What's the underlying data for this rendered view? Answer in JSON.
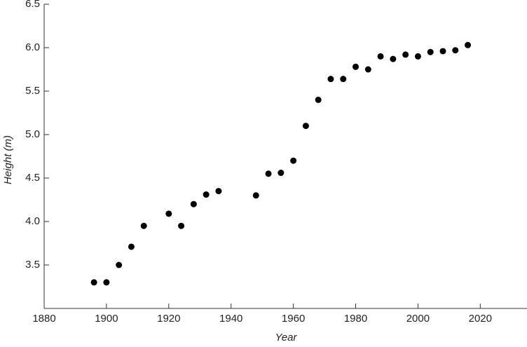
{
  "chart_data": {
    "type": "scatter",
    "x_label": "Year",
    "y_label": "Height (m)",
    "color": "#000000",
    "x": [
      1896,
      1900,
      1904,
      1908,
      1912,
      1920,
      1924,
      1928,
      1932,
      1936,
      1948,
      1952,
      1956,
      1960,
      1964,
      1968,
      1972,
      1976,
      1980,
      1984,
      1988,
      1992,
      1996,
      2000,
      2004,
      2008,
      2012,
      2016
    ],
    "values": [
      3.3,
      3.3,
      3.5,
      3.71,
      3.95,
      4.09,
      3.95,
      4.2,
      4.31,
      4.35,
      4.3,
      4.55,
      4.56,
      4.7,
      5.1,
      5.4,
      5.64,
      5.64,
      5.78,
      5.75,
      5.9,
      5.87,
      5.92,
      5.9,
      5.95,
      5.96,
      5.97,
      6.03
    ],
    "xlim": [
      1880,
      2035
    ],
    "ylim": [
      3.0,
      6.5
    ],
    "xticks": [
      1880,
      1900,
      1920,
      1940,
      1960,
      1980,
      2000,
      2020
    ],
    "yticks": [
      3.5,
      {
        "value": 4,
        "label": "4.0"
      },
      4.5,
      {
        "value": 5,
        "label": "5.0"
      },
      5.5,
      {
        "value": 6,
        "label": "6.0"
      },
      6.5
    ]
  }
}
